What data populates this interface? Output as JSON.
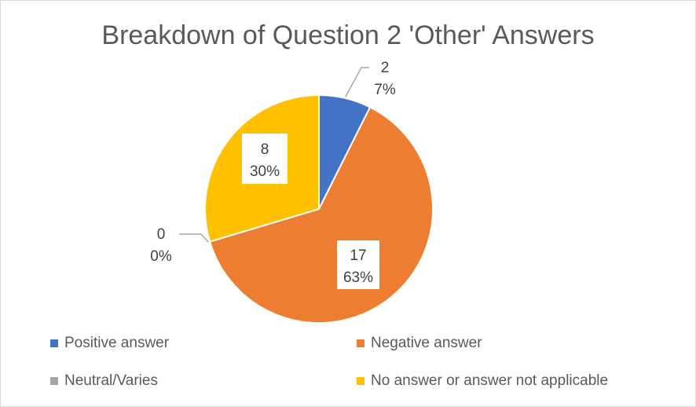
{
  "chart_data": {
    "type": "pie",
    "title": "Breakdown of Question 2 'Other' Answers",
    "categories": [
      "Positive answer",
      "Negative answer",
      "Neutral/Varies",
      "No answer or answer not applicable"
    ],
    "values": [
      2,
      17,
      0,
      8
    ],
    "percent_labels": [
      "7%",
      "63%",
      "0%",
      "30%"
    ],
    "value_labels": [
      "2",
      "17",
      "0",
      "8"
    ],
    "colors": [
      "#4472c4",
      "#ed7d31",
      "#a5a5a5",
      "#ffc000"
    ],
    "legend": "bottom"
  }
}
